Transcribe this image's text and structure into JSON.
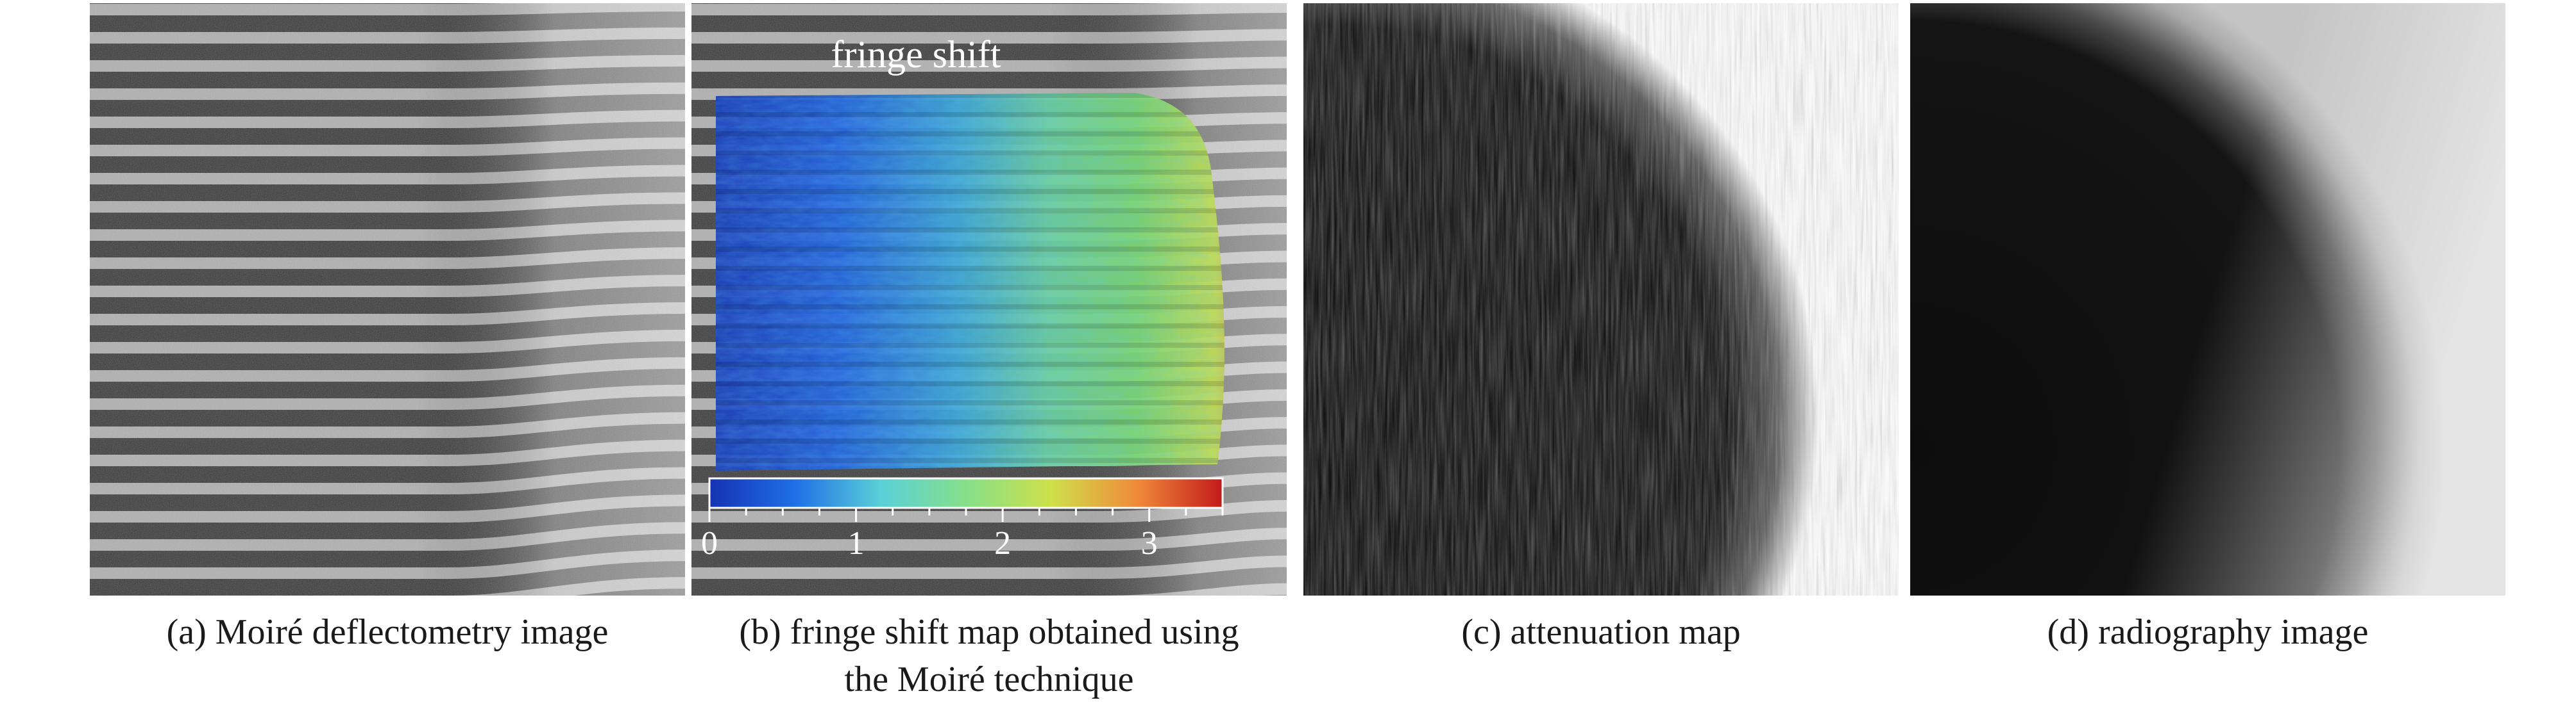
{
  "panels": [
    {
      "id": "a",
      "caption_lines": [
        "(a) Moiré deflectometry image"
      ]
    },
    {
      "id": "b",
      "caption_lines": [
        "(b) fringe shift map obtained using",
        "the Moiré technique"
      ]
    },
    {
      "id": "c",
      "caption_lines": [
        "(c) attenuation map"
      ]
    },
    {
      "id": "d",
      "caption_lines": [
        "(d) radiography image"
      ]
    }
  ],
  "overlay": {
    "title": "fringe shift",
    "colorbar": {
      "ticks": [
        "0",
        "1",
        "2",
        "3"
      ],
      "tick_values": [
        0,
        1,
        2,
        3
      ],
      "range": [
        0,
        3.5
      ],
      "colors": [
        "#1533b3",
        "#1f6fe6",
        "#5ad0d8",
        "#86e08a",
        "#cfe04a",
        "#f08a3a",
        "#c21a1a"
      ]
    }
  }
}
